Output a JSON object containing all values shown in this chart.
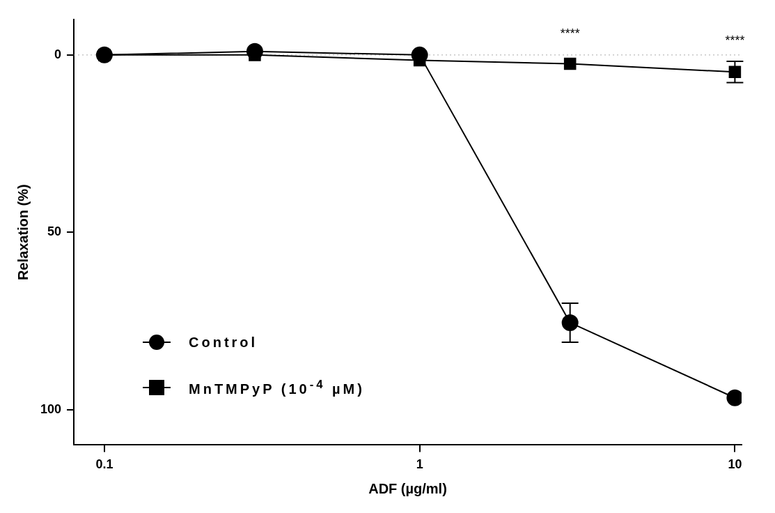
{
  "chart_data": {
    "type": "line",
    "xlabel": "ADF (µg/ml)",
    "ylabel": "Relaxation (%)",
    "x": [
      0.1,
      0.3,
      1,
      3,
      10
    ],
    "xlim": [
      0.08,
      10.5
    ],
    "xticks": [
      0.1,
      1,
      10
    ],
    "log": "x",
    "ylim": [
      110,
      -10
    ],
    "yticks": [
      0,
      50,
      100
    ],
    "series": [
      {
        "name": "Control",
        "color": "#000000",
        "marker": "circle",
        "values": [
          0,
          -1,
          0,
          75.5,
          96.7
        ],
        "errors": [
          null,
          null,
          null,
          5.5,
          null
        ]
      },
      {
        "name": "MnTMPyP (10$^{-4}$ µM)",
        "color": "#000000",
        "marker": "square",
        "values": [
          0,
          0,
          1.5,
          2.5,
          4.8
        ],
        "errors": [
          null,
          null,
          null,
          null,
          3
        ]
      }
    ],
    "ref_lines": [
      {
        "axis": "y",
        "value": 0,
        "color": "#aaaaaa",
        "line_style": "dotted"
      }
    ],
    "annotations": [
      "****",
      "****"
    ],
    "grid": false,
    "legend": "bottom left"
  }
}
